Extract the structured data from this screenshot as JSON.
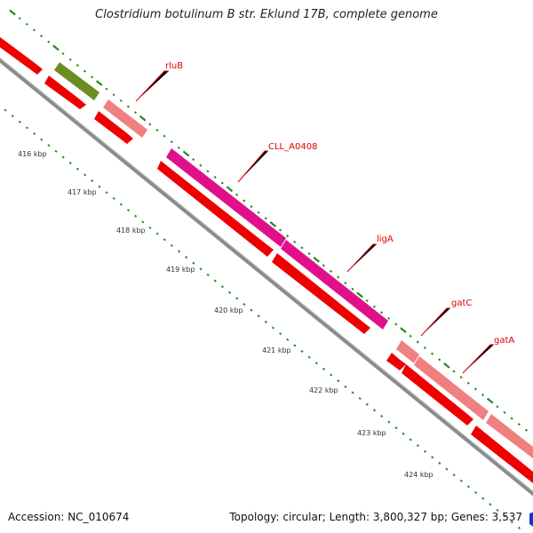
{
  "title": "Clostridium botulinum B str. Eklund 17B, complete genome",
  "accession_label": "Accession: NC_010674",
  "summary_label": "Topology: circular; Length: 3,800,327 bp; Genes: 3,537",
  "kbp_ticks": [
    "416 kbp",
    "417 kbp",
    "418 kbp",
    "419 kbp",
    "420 kbp",
    "421 kbp",
    "422 kbp",
    "423 kbp",
    "424 kbp"
  ],
  "gene_labels": [
    "rluB",
    "CLL_A0408",
    "ligA",
    "gatC",
    "gatA"
  ],
  "colors": {
    "background": "#ffffff",
    "backbone": "#8c8c8c",
    "cds_strand": "#ee0000",
    "cds_dark": "#cc0000",
    "rluB": "#f08080",
    "CLL_A0408": "#e0108a",
    "ligA": "#e0108a",
    "gatC": "#f08080",
    "gatA": "#f08080",
    "green_feature": "#6b8e23",
    "tick_green": "#228b22",
    "label_red": "#dd0000"
  }
}
